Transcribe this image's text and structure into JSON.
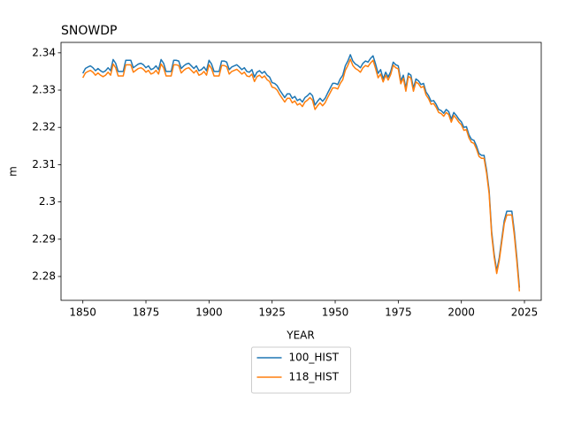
{
  "chart_data": {
    "type": "line",
    "title": "SNOWDP",
    "xlabel": "YEAR",
    "ylabel": "m",
    "x": [
      1850,
      1851,
      1852,
      1853,
      1854,
      1855,
      1856,
      1857,
      1858,
      1859,
      1860,
      1861,
      1862,
      1863,
      1864,
      1865,
      1866,
      1867,
      1868,
      1869,
      1870,
      1871,
      1872,
      1873,
      1874,
      1875,
      1876,
      1877,
      1878,
      1879,
      1880,
      1881,
      1882,
      1883,
      1884,
      1885,
      1886,
      1887,
      1888,
      1889,
      1890,
      1891,
      1892,
      1893,
      1894,
      1895,
      1896,
      1897,
      1898,
      1899,
      1900,
      1901,
      1902,
      1903,
      1904,
      1905,
      1906,
      1907,
      1908,
      1909,
      1910,
      1911,
      1912,
      1913,
      1914,
      1915,
      1916,
      1917,
      1918,
      1919,
      1920,
      1921,
      1922,
      1923,
      1924,
      1925,
      1926,
      1927,
      1928,
      1929,
      1930,
      1931,
      1932,
      1933,
      1934,
      1935,
      1936,
      1937,
      1938,
      1939,
      1940,
      1941,
      1942,
      1943,
      1944,
      1945,
      1946,
      1947,
      1948,
      1949,
      1950,
      1951,
      1952,
      1953,
      1954,
      1955,
      1956,
      1957,
      1958,
      1959,
      1960,
      1961,
      1962,
      1963,
      1964,
      1965,
      1966,
      1967,
      1968,
      1969,
      1970,
      1971,
      1972,
      1973,
      1974,
      1975,
      1976,
      1977,
      1978,
      1979,
      1980,
      1981,
      1982,
      1983,
      1984,
      1985,
      1986,
      1987,
      1988,
      1989,
      1990,
      1991,
      1992,
      1993,
      1994,
      1995,
      1996,
      1997,
      1998,
      1999,
      2000,
      2001,
      2002,
      2003,
      2004,
      2005,
      2006,
      2007,
      2008,
      2009,
      2010,
      2011,
      2012,
      2013,
      2014,
      2015,
      2016,
      2017,
      2018,
      2019,
      2020,
      2021,
      2022,
      2023
    ],
    "series": [
      {
        "name": "100_HIST",
        "color": "#1f77b4",
        "values": [
          2.3345,
          2.3358,
          2.3362,
          2.3365,
          2.336,
          2.3352,
          2.3358,
          2.3352,
          2.3348,
          2.3352,
          2.336,
          2.3352,
          2.3382,
          2.3372,
          2.335,
          2.335,
          2.335,
          2.338,
          2.338,
          2.338,
          2.336,
          2.3365,
          2.337,
          2.3372,
          2.3368,
          2.336,
          2.3365,
          2.3355,
          2.3358,
          2.3365,
          2.3355,
          2.3382,
          2.3372,
          2.335,
          2.335,
          2.335,
          2.338,
          2.338,
          2.3378,
          2.3358,
          2.3365,
          2.337,
          2.3372,
          2.3365,
          2.3358,
          2.3365,
          2.3352,
          2.3355,
          2.3362,
          2.3352,
          2.338,
          2.337,
          2.335,
          2.335,
          2.335,
          2.3378,
          2.3378,
          2.3375,
          2.3355,
          2.3362,
          2.3365,
          2.3368,
          2.3362,
          2.3355,
          2.336,
          2.335,
          2.3348,
          2.3355,
          2.3335,
          2.3348,
          2.3352,
          2.3345,
          2.335,
          2.334,
          2.3335,
          2.332,
          2.3318,
          2.3312,
          2.33,
          2.329,
          2.328,
          2.329,
          2.329,
          2.3278,
          2.3283,
          2.3272,
          2.3276,
          2.3268,
          2.328,
          2.3285,
          2.3292,
          2.3285,
          2.326,
          2.327,
          2.3278,
          2.327,
          2.3278,
          2.3292,
          2.3305,
          2.3318,
          2.3318,
          2.3315,
          2.333,
          2.334,
          2.3365,
          2.3378,
          2.3395,
          2.3378,
          2.337,
          2.3366,
          2.336,
          2.3372,
          2.3378,
          2.3375,
          2.3385,
          2.3392,
          2.337,
          2.3345,
          2.3355,
          2.333,
          2.3348,
          2.3335,
          2.335,
          2.3375,
          2.3368,
          2.3365,
          2.3325,
          2.334,
          2.3305,
          2.3345,
          2.334,
          2.3305,
          2.333,
          2.3325,
          2.3315,
          2.3318,
          2.3295,
          2.3285,
          2.327,
          2.3272,
          2.3262,
          2.3248,
          2.3245,
          2.3238,
          2.3248,
          2.3242,
          2.3222,
          2.324,
          2.3232,
          2.3222,
          2.3215,
          2.32,
          2.3202,
          2.318,
          2.3168,
          2.3165,
          2.315,
          2.313,
          2.3125,
          2.3125,
          2.3085,
          2.303,
          2.292,
          2.286,
          2.2815,
          2.285,
          2.29,
          2.295,
          2.2975,
          2.2975,
          2.2975,
          2.292,
          2.285,
          2.277
        ]
      },
      {
        "name": "118_HIST",
        "color": "#ff7f0e",
        "values": [
          2.3333,
          2.3346,
          2.335,
          2.3353,
          2.3348,
          2.334,
          2.3346,
          2.334,
          2.3336,
          2.334,
          2.3348,
          2.334,
          2.337,
          2.336,
          2.3338,
          2.3338,
          2.3338,
          2.3368,
          2.3368,
          2.3368,
          2.3348,
          2.3353,
          2.3358,
          2.336,
          2.3356,
          2.3348,
          2.3353,
          2.3343,
          2.3346,
          2.3353,
          2.3343,
          2.337,
          2.336,
          2.3338,
          2.3338,
          2.3338,
          2.3368,
          2.3368,
          2.3366,
          2.3346,
          2.3353,
          2.3358,
          2.336,
          2.3353,
          2.3346,
          2.3353,
          2.334,
          2.3343,
          2.335,
          2.334,
          2.3368,
          2.3358,
          2.3338,
          2.3338,
          2.3338,
          2.3366,
          2.3366,
          2.3363,
          2.3343,
          2.335,
          2.3353,
          2.3356,
          2.335,
          2.3343,
          2.3348,
          2.3338,
          2.3336,
          2.3343,
          2.3323,
          2.3336,
          2.334,
          2.3333,
          2.3338,
          2.3328,
          2.3323,
          2.3308,
          2.3306,
          2.33,
          2.3288,
          2.3278,
          2.3268,
          2.3278,
          2.3278,
          2.3266,
          2.3271,
          2.326,
          2.3264,
          2.3256,
          2.3268,
          2.3273,
          2.328,
          2.3273,
          2.3248,
          2.3258,
          2.3266,
          2.3258,
          2.3266,
          2.328,
          2.3293,
          2.3306,
          2.3306,
          2.3303,
          2.3318,
          2.3328,
          2.3353,
          2.3366,
          2.3383,
          2.3366,
          2.3358,
          2.3354,
          2.3348,
          2.336,
          2.3366,
          2.3363,
          2.3373,
          2.338,
          2.3358,
          2.3333,
          2.3343,
          2.3322,
          2.334,
          2.3327,
          2.3342,
          2.3367,
          2.336,
          2.3357,
          2.3317,
          2.3332,
          2.3297,
          2.3337,
          2.3332,
          2.3297,
          2.3322,
          2.3317,
          2.3307,
          2.331,
          2.3287,
          2.3277,
          2.3262,
          2.3264,
          2.3254,
          2.324,
          2.3237,
          2.323,
          2.324,
          2.3234,
          2.3214,
          2.3232,
          2.3224,
          2.3214,
          2.3207,
          2.3192,
          2.3194,
          2.3172,
          2.316,
          2.3157,
          2.3142,
          2.3122,
          2.3117,
          2.3117,
          2.3077,
          2.3022,
          2.2912,
          2.2852,
          2.2808,
          2.2842,
          2.2892,
          2.2942,
          2.2965,
          2.2965,
          2.2965,
          2.291,
          2.284,
          2.276
        ]
      }
    ],
    "xlim": [
      1841.35,
      2031.65
    ],
    "xticks": [
      1850,
      1875,
      1900,
      1925,
      1950,
      1975,
      2000,
      2025
    ],
    "ylim": [
      2.2736,
      2.3428
    ],
    "yticks": [
      2.28,
      2.29,
      2.3,
      2.31,
      2.32,
      2.33,
      2.34
    ],
    "legend": "below",
    "grid": false
  }
}
